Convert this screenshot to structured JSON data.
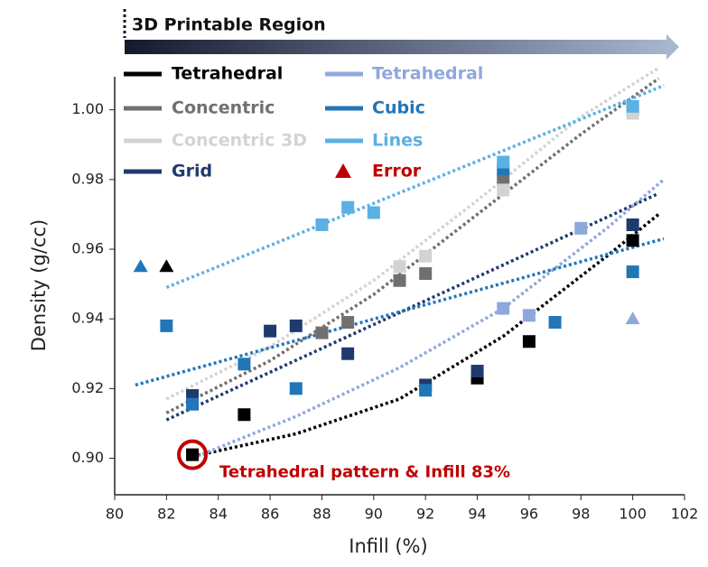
{
  "chart_data": {
    "type": "scatter",
    "header": "3D Printable Region",
    "xlabel": "Infill (%)",
    "ylabel": "Density (g/cc)",
    "xlim": [
      80,
      102
    ],
    "ylim": [
      0.8895,
      1.0095
    ],
    "xticks": [
      80,
      82,
      84,
      86,
      88,
      90,
      92,
      94,
      96,
      98,
      100,
      102
    ],
    "yticks": [
      {
        "value": 0.9,
        "label": "0.90"
      },
      0.92,
      0.94,
      0.96,
      0.98,
      {
        "value": 1,
        "label": "1.00"
      }
    ],
    "error_legend": {
      "name": "Error",
      "color": "#c00000"
    },
    "annotation": {
      "text": "Tetrahedral pattern & Infill 83%",
      "x": 83,
      "y": 0.901,
      "color": "#c00000"
    },
    "series": [
      {
        "name": "Tetrahedral",
        "color": "#000000",
        "x": [
          83,
          85,
          94,
          96,
          100
        ],
        "values": [
          0.901,
          0.9125,
          0.923,
          0.9335,
          0.9625
        ],
        "error_x": [
          82
        ],
        "error_values": [
          0.955
        ],
        "trend": {
          "x": [
            83,
            87,
            91,
            95,
            99,
            101
          ],
          "values": [
            0.9005,
            0.907,
            0.917,
            0.935,
            0.958,
            0.97
          ]
        }
      },
      {
        "name": "Concentric",
        "color": "#707070",
        "x": [
          88,
          89,
          91,
          92,
          95,
          100
        ],
        "values": [
          0.936,
          0.939,
          0.951,
          0.953,
          0.98,
          1.0
        ],
        "trend": {
          "x": [
            82,
            86,
            90,
            94,
            98,
            101
          ],
          "values": [
            0.913,
            0.928,
            0.947,
            0.97,
            0.993,
            1.009
          ]
        }
      },
      {
        "name": "Concentric 3D",
        "color": "#d3d3d3",
        "x": [
          91,
          92,
          95,
          100
        ],
        "values": [
          0.955,
          0.958,
          0.977,
          0.999
        ],
        "trend": {
          "x": [
            82,
            86,
            90,
            94,
            98,
            101
          ],
          "values": [
            0.917,
            0.932,
            0.951,
            0.974,
            0.998,
            1.012
          ]
        }
      },
      {
        "name": "Grid",
        "color": "#1f3a6e",
        "x": [
          83,
          86,
          87,
          89,
          92,
          94,
          100
        ],
        "values": [
          0.918,
          0.9365,
          0.938,
          0.93,
          0.921,
          0.925,
          0.967
        ],
        "trend": {
          "x": [
            82,
            101
          ],
          "values": [
            0.911,
            0.976
          ]
        }
      },
      {
        "name": "Tetrahedral",
        "color": "#8fa8dc",
        "x": [
          95,
          96,
          98
        ],
        "values": [
          0.943,
          0.941,
          0.966
        ],
        "error_x": [
          100
        ],
        "error_values": [
          0.94
        ],
        "trend": {
          "x": [
            83,
            87,
            91,
            95,
            99,
            101.2
          ],
          "values": [
            0.9,
            0.912,
            0.926,
            0.943,
            0.966,
            0.98
          ]
        }
      },
      {
        "name": "Cubic",
        "color": "#2176b8",
        "x": [
          82,
          83,
          85,
          87,
          92,
          95,
          97,
          100
        ],
        "values": [
          0.938,
          0.9155,
          0.927,
          0.92,
          0.9195,
          0.983,
          0.939,
          0.9535
        ],
        "error_x": [
          81
        ],
        "error_values": [
          0.955
        ],
        "trend": {
          "x": [
            80.8,
            101.2
          ],
          "values": [
            0.921,
            0.963
          ]
        }
      },
      {
        "name": "Lines",
        "color": "#5cb0e4",
        "x": [
          88,
          89,
          90,
          95,
          100
        ],
        "values": [
          0.967,
          0.972,
          0.9705,
          0.985,
          1.001
        ],
        "trend": {
          "x": [
            82,
            101.2
          ],
          "values": [
            0.949,
            1.007
          ]
        }
      }
    ]
  }
}
